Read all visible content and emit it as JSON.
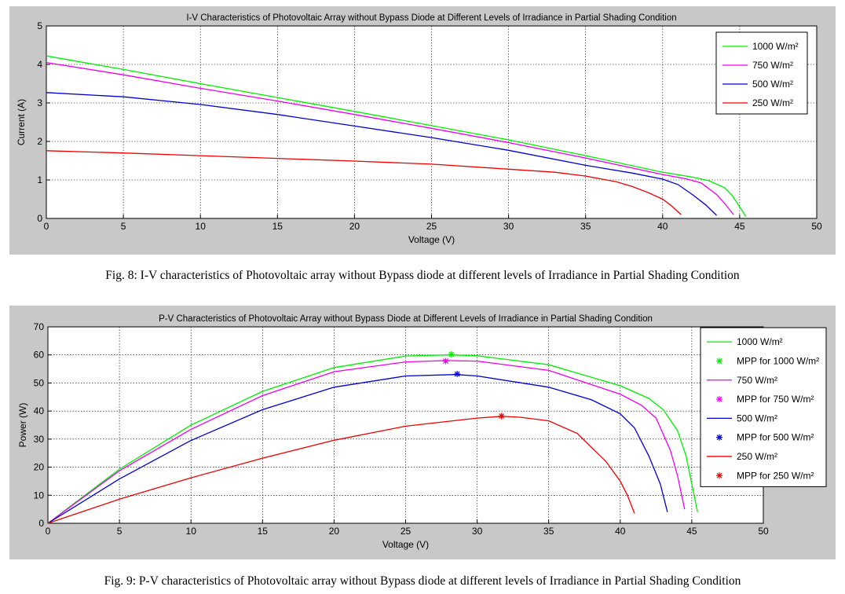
{
  "chart_data": [
    {
      "type": "line",
      "title": "I-V Characteristics of Photovoltaic Array without Bypass Diode at Different Levels of Irradiance in Partial Shading Condition",
      "xlabel": "Voltage (V)",
      "ylabel": "Current (A)",
      "xlim": [
        0,
        50
      ],
      "ylim": [
        0,
        5
      ],
      "xticks": [
        0,
        5,
        10,
        15,
        20,
        25,
        30,
        35,
        40,
        45,
        50
      ],
      "yticks": [
        0,
        1,
        2,
        3,
        4,
        5
      ],
      "grid": true,
      "legend_position": "top-right",
      "series": [
        {
          "name": "1000 W/m²",
          "color": "#00ee00",
          "x": [
            0,
            5,
            10,
            15,
            20,
            25,
            30,
            35,
            40,
            42,
            43,
            44,
            44.5,
            45,
            45.4
          ],
          "y": [
            4.22,
            3.87,
            3.5,
            3.14,
            2.78,
            2.41,
            2.04,
            1.63,
            1.2,
            1.07,
            0.98,
            0.8,
            0.6,
            0.3,
            0.05
          ]
        },
        {
          "name": "750 W/m²",
          "color": "#ee00ee",
          "x": [
            0,
            5,
            10,
            15,
            20,
            25,
            30,
            35,
            40,
            41.5,
            42.5,
            43.5,
            44,
            44.6
          ],
          "y": [
            4.05,
            3.73,
            3.38,
            3.05,
            2.7,
            2.34,
            1.97,
            1.57,
            1.14,
            1.03,
            0.92,
            0.62,
            0.4,
            0.1
          ]
        },
        {
          "name": "500 W/m²",
          "color": "#0000cc",
          "x": [
            0,
            5,
            10,
            15,
            20,
            25,
            30,
            35,
            38,
            40,
            41,
            42,
            42.8,
            43.5
          ],
          "y": [
            3.27,
            3.16,
            2.96,
            2.7,
            2.4,
            2.1,
            1.77,
            1.38,
            1.18,
            1.02,
            0.88,
            0.6,
            0.35,
            0.08
          ]
        },
        {
          "name": "250 W/m²",
          "color": "#ee0000",
          "x": [
            0,
            5,
            10,
            15,
            20,
            25,
            30,
            33,
            35,
            37,
            38,
            39,
            40,
            40.5,
            41.2
          ],
          "y": [
            1.76,
            1.7,
            1.63,
            1.56,
            1.49,
            1.41,
            1.28,
            1.2,
            1.1,
            0.95,
            0.83,
            0.68,
            0.5,
            0.35,
            0.1
          ]
        }
      ]
    },
    {
      "type": "line",
      "title": "P-V Characteristics of Photovoltaic Array without Bypass Diode at Different Levels of Irradiance in Partial Shading Condition",
      "xlabel": "Voltage (V)",
      "ylabel": "Power (W)",
      "xlim": [
        0,
        50
      ],
      "ylim": [
        0,
        70
      ],
      "xticks": [
        0,
        5,
        10,
        15,
        20,
        25,
        30,
        35,
        40,
        45,
        50
      ],
      "yticks": [
        0,
        10,
        20,
        30,
        40,
        50,
        60,
        70
      ],
      "grid": true,
      "legend_position": "top-right",
      "series": [
        {
          "name": "1000 W/m²",
          "color": "#00ee00",
          "x": [
            0,
            5,
            10,
            15,
            20,
            25,
            28,
            30,
            35,
            40,
            42,
            43,
            44,
            44.6,
            45,
            45.4
          ],
          "y": [
            0,
            19.3,
            35,
            47,
            55.5,
            59.6,
            60,
            59.7,
            56.5,
            49,
            44.5,
            40.5,
            33,
            24,
            14,
            4
          ]
        },
        {
          "name": "750 W/m²",
          "color": "#ee00ee",
          "x": [
            0,
            5,
            10,
            15,
            20,
            25,
            27.8,
            30,
            35,
            40,
            41.5,
            42.5,
            43.5,
            44,
            44.5
          ],
          "y": [
            0,
            18.7,
            33.5,
            45.5,
            54,
            57.5,
            58,
            57.8,
            54.5,
            46,
            42,
            37.5,
            26,
            17,
            5
          ]
        },
        {
          "name": "500 W/m²",
          "color": "#0000cc",
          "x": [
            0,
            5,
            10,
            15,
            20,
            25,
            28.5,
            30,
            35,
            38,
            40,
            41,
            42,
            42.8,
            43.3
          ],
          "y": [
            0,
            15.8,
            29.5,
            40.5,
            48.5,
            52.5,
            53,
            52.5,
            48.5,
            44,
            39,
            34,
            24,
            14,
            4
          ]
        },
        {
          "name": "250 W/m²",
          "color": "#ee0000",
          "x": [
            0,
            5,
            10,
            15,
            20,
            25,
            30,
            31.7,
            33,
            35,
            37,
            38,
            39,
            40,
            40.5,
            41
          ],
          "y": [
            0,
            8.6,
            16.2,
            23.2,
            29.6,
            34.6,
            37.5,
            38.1,
            37.8,
            36.5,
            32,
            27,
            22,
            15,
            10,
            3.5
          ]
        }
      ],
      "markers": [
        {
          "name": "MPP for 1000 W/m²",
          "color": "#00ee00",
          "x": 28.2,
          "y": 60.2
        },
        {
          "name": "MPP for 750 W/m²",
          "color": "#ee00ee",
          "x": 27.8,
          "y": 57.8
        },
        {
          "name": "MPP for 500 W/m²",
          "color": "#0000cc",
          "x": 28.6,
          "y": 53.2
        },
        {
          "name": "MPP for 250 W/m²",
          "color": "#ee0000",
          "x": 31.7,
          "y": 38.2
        }
      ]
    }
  ],
  "captions": {
    "fig8": "Fig. 8: I-V characteristics of Photovoltaic array without Bypass diode at different levels of Irradiance in Partial Shading Condition",
    "fig9": "Fig. 9: P-V characteristics of Photovoltaic array without Bypass diode at different levels of Irradiance in Partial Shading Condition"
  }
}
